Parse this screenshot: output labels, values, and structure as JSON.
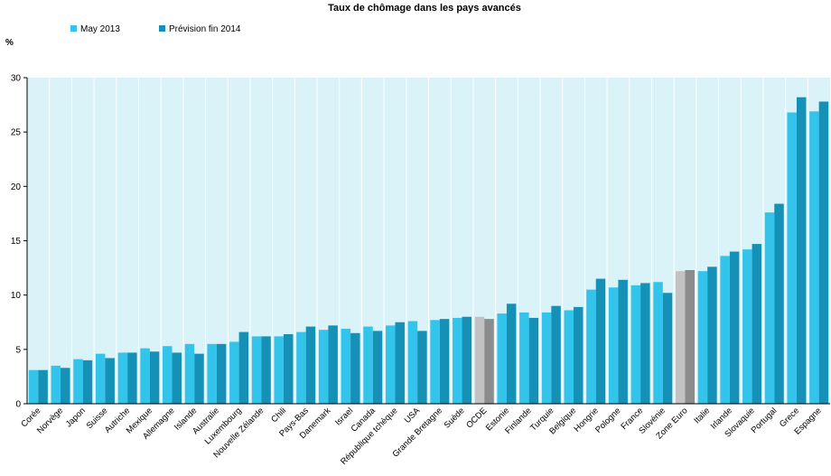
{
  "chart_data": {
    "type": "bar",
    "title": "Taux de chômage dans les pays avancés",
    "ylabel": "%",
    "ylim": [
      0,
      30
    ],
    "yticks": [
      0,
      5,
      10,
      15,
      20,
      25,
      30
    ],
    "grid": "vertical lines between categories",
    "legend_position": "top-left",
    "categories": [
      "Corée",
      "Norvège",
      "Japon",
      "Suisse",
      "Autriche",
      "Mexique",
      "Allemagne",
      "Islande",
      "Australie",
      "Luxembourg",
      "Nouvelle Zélande",
      "Chili",
      "Pays-Bas",
      "Danemark",
      "Israel",
      "Canada",
      "République tchèque",
      "USA",
      "Grande Bretagne",
      "Suède",
      "OCDE",
      "Estonie",
      "Finlande",
      "Turquie",
      "Belgique",
      "Hongrie",
      "Pologne",
      "France",
      "Slovénie",
      "Zone Euro",
      "Italie",
      "Irlande",
      "Slovaquie",
      "Portugal",
      "Grece",
      "Espagne"
    ],
    "highlight_categories": [
      "OCDE",
      "Zone Euro"
    ],
    "series": [
      {
        "name": "May 2013",
        "color": "#33c4ec",
        "highlight_color": "#c2c2c2",
        "values": [
          3.1,
          3.5,
          4.1,
          4.6,
          4.7,
          5.1,
          5.3,
          5.5,
          5.5,
          5.7,
          6.2,
          6.2,
          6.6,
          6.8,
          6.9,
          7.1,
          7.2,
          7.6,
          7.7,
          7.9,
          8.0,
          8.3,
          8.4,
          8.4,
          8.6,
          10.5,
          10.7,
          10.9,
          11.2,
          12.2,
          12.2,
          13.6,
          14.2,
          17.6,
          26.8,
          26.9
        ]
      },
      {
        "name": "Prévision fin 2014",
        "color": "#1591b7",
        "highlight_color": "#8c8c8c",
        "values": [
          3.1,
          3.3,
          4.0,
          4.2,
          4.7,
          4.8,
          4.7,
          4.6,
          5.5,
          6.6,
          6.2,
          6.4,
          7.1,
          7.2,
          6.5,
          6.7,
          7.5,
          6.7,
          7.8,
          8.0,
          7.8,
          9.2,
          7.9,
          9.0,
          8.9,
          11.5,
          11.4,
          11.1,
          10.2,
          12.3,
          12.6,
          14.0,
          14.7,
          18.4,
          28.2,
          27.8
        ]
      }
    ]
  }
}
